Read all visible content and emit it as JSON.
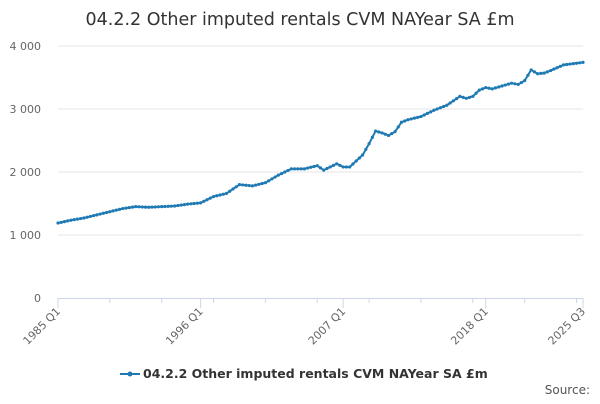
{
  "chart_data": {
    "type": "line",
    "title": "04.2.2 Other imputed rentals CVM NAYear SA £m",
    "xlabel": "",
    "ylabel": "",
    "x_start": "1985 Q1",
    "x_end": "2025 Q3",
    "x_ticks": [
      "1985 Q1",
      "1996 Q1",
      "2007 Q1",
      "2018 Q1",
      "2025 Q3"
    ],
    "y_ticks": [
      "0",
      "1 000",
      "2 000",
      "3 000",
      "4 000"
    ],
    "ylim": [
      0,
      4000
    ],
    "grid": true,
    "legend_position": "bottom",
    "source_label": "Source:",
    "series": [
      {
        "name": "04.2.2 Other imputed rentals CVM NAYear SA £m",
        "color": "#1f7ab4",
        "anchors": [
          [
            "1985 Q1",
            1190
          ],
          [
            "1986 Q1",
            1235
          ],
          [
            "1987 Q1",
            1270
          ],
          [
            "1988 Q1",
            1320
          ],
          [
            "1989 Q1",
            1370
          ],
          [
            "1990 Q1",
            1420
          ],
          [
            "1991 Q1",
            1450
          ],
          [
            "1992 Q1",
            1440
          ],
          [
            "1993 Q1",
            1450
          ],
          [
            "1994 Q1",
            1460
          ],
          [
            "1995 Q1",
            1490
          ],
          [
            "1996 Q1",
            1510
          ],
          [
            "1997 Q1",
            1610
          ],
          [
            "1998 Q1",
            1660
          ],
          [
            "1999 Q1",
            1800
          ],
          [
            "2000 Q1",
            1780
          ],
          [
            "2001 Q1",
            1830
          ],
          [
            "2002 Q1",
            1950
          ],
          [
            "2003 Q1",
            2050
          ],
          [
            "2004 Q1",
            2050
          ],
          [
            "2005 Q1",
            2100
          ],
          [
            "2005 Q3",
            2030
          ],
          [
            "2006 Q3",
            2130
          ],
          [
            "2007 Q1",
            2080
          ],
          [
            "2007 Q3",
            2080
          ],
          [
            "2008 Q3",
            2270
          ],
          [
            "2009 Q1",
            2450
          ],
          [
            "2009 Q3",
            2650
          ],
          [
            "2010 Q1",
            2620
          ],
          [
            "2010 Q3",
            2580
          ],
          [
            "2011 Q1",
            2640
          ],
          [
            "2011 Q3",
            2790
          ],
          [
            "2012 Q1",
            2830
          ],
          [
            "2013 Q1",
            2880
          ],
          [
            "2014 Q1",
            2980
          ],
          [
            "2015 Q1",
            3060
          ],
          [
            "2016 Q1",
            3200
          ],
          [
            "2016 Q3",
            3170
          ],
          [
            "2017 Q1",
            3200
          ],
          [
            "2017 Q3",
            3300
          ],
          [
            "2018 Q1",
            3340
          ],
          [
            "2018 Q3",
            3320
          ],
          [
            "2019 Q1",
            3350
          ],
          [
            "2020 Q1",
            3410
          ],
          [
            "2020 Q3",
            3390
          ],
          [
            "2021 Q1",
            3450
          ],
          [
            "2021 Q3",
            3620
          ],
          [
            "2022 Q1",
            3560
          ],
          [
            "2022 Q3",
            3570
          ],
          [
            "2023 Q1",
            3610
          ],
          [
            "2024 Q1",
            3700
          ],
          [
            "2025 Q3",
            3740
          ]
        ]
      }
    ]
  }
}
